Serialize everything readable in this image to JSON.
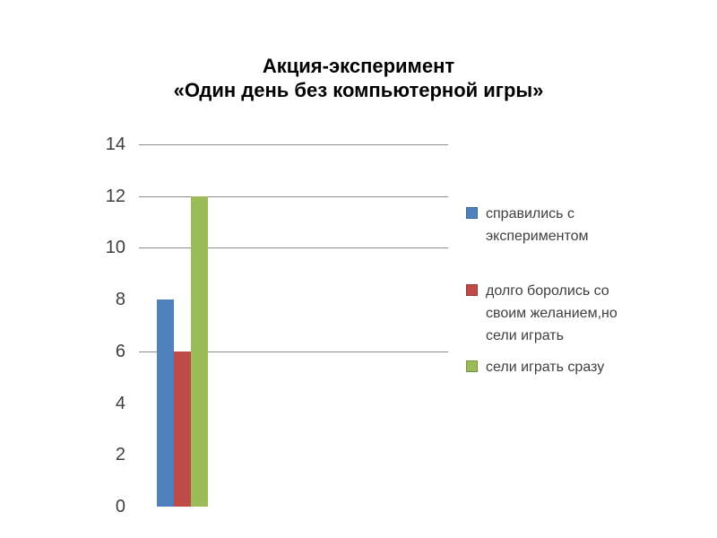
{
  "title": {
    "line1": "Акция-эксперимент",
    "line2": "«Один день без компьютерной игры»"
  },
  "chart_data": {
    "type": "bar",
    "title": "Акция-эксперимент «Один день без компьютерной игры»",
    "categories": [
      ""
    ],
    "series": [
      {
        "name": "справились с экспериментом",
        "values": [
          8
        ],
        "color": "#4f81bd",
        "swatch_border": "#3a679c"
      },
      {
        "name": "долго боролись со своим желанием,но сели играть",
        "values": [
          6
        ],
        "color": "#be4b48",
        "swatch_border": "#953734"
      },
      {
        "name": "сели играть сразу",
        "values": [
          12
        ],
        "color": "#9bbb59",
        "swatch_border": "#76923c"
      }
    ],
    "xlabel": "",
    "ylabel": "",
    "ylim": [
      0,
      14
    ],
    "yticks": [
      0,
      2,
      4,
      6,
      8,
      10,
      12,
      14
    ],
    "gridline_values": [
      6,
      10,
      12,
      14
    ],
    "grid": true,
    "legend_position": "right",
    "gridline_color": "#8c8c8c",
    "tick_label_color": "#3f3f3f",
    "legend_text_color": "#3f3f3f",
    "background_color": "#ffffff"
  }
}
